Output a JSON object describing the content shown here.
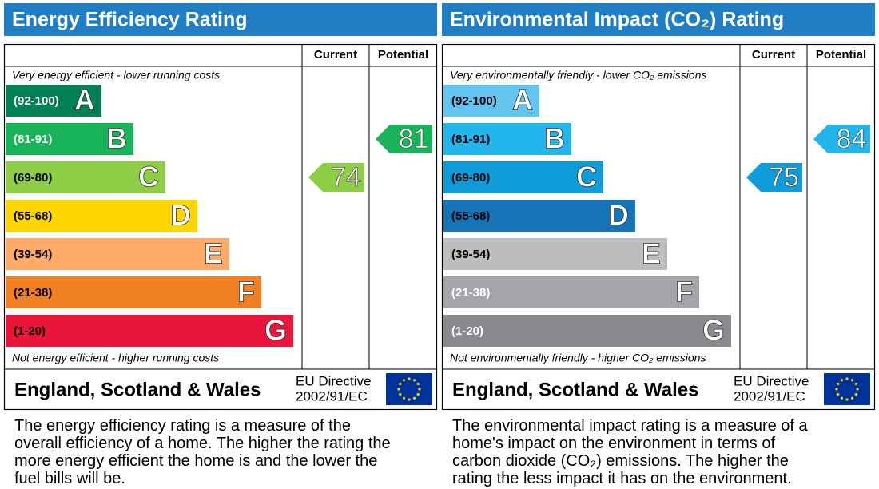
{
  "panels": [
    {
      "title": "Energy Efficiency Rating",
      "current_header": "Current",
      "potential_header": "Potential",
      "top_note": "Very energy efficient - lower running costs",
      "bottom_note": "Not energy efficient - higher running costs",
      "bands": [
        {
          "range": "(92-100)",
          "letter": "A",
          "color": "#008054",
          "text_color": "#ffffff"
        },
        {
          "range": "(81-91)",
          "letter": "B",
          "color": "#19b459",
          "text_color": "#ffffff"
        },
        {
          "range": "(69-80)",
          "letter": "C",
          "color": "#8dce46",
          "text_color": "#000000"
        },
        {
          "range": "(55-68)",
          "letter": "D",
          "color": "#ffd500",
          "text_color": "#000000"
        },
        {
          "range": "(39-54)",
          "letter": "E",
          "color": "#fcaa65",
          "text_color": "#000000"
        },
        {
          "range": "(21-38)",
          "letter": "F",
          "color": "#ef8023",
          "text_color": "#000000"
        },
        {
          "range": "(1-20)",
          "letter": "G",
          "color": "#e9153b",
          "text_color": "#000000"
        }
      ],
      "current": 74,
      "potential": 81,
      "region": "England, Scotland & Wales",
      "directive": "EU Directive",
      "directive_code": "2002/91/EC",
      "description": "The energy efficiency rating is a measure of the overall efficiency of a home. The higher the rating the more energy efficient the home is and the lower the fuel bills will be."
    },
    {
      "title": "Environmental Impact (CO₂) Rating",
      "current_header": "Current",
      "potential_header": "Potential",
      "top_note": "Very environmentally friendly - lower CO₂ emissions",
      "bottom_note": "Not environmentally friendly - higher CO₂ emissions",
      "bands": [
        {
          "range": "(92-100)",
          "letter": "A",
          "color": "#63c5ef",
          "text_color": "#000000"
        },
        {
          "range": "(81-91)",
          "letter": "B",
          "color": "#22b5eb",
          "text_color": "#000000"
        },
        {
          "range": "(69-80)",
          "letter": "C",
          "color": "#0e9bd8",
          "text_color": "#000000"
        },
        {
          "range": "(55-68)",
          "letter": "D",
          "color": "#1574b8",
          "text_color": "#000000"
        },
        {
          "range": "(39-54)",
          "letter": "E",
          "color": "#bbbdbf",
          "text_color": "#000000"
        },
        {
          "range": "(21-38)",
          "letter": "F",
          "color": "#a4a5a8",
          "text_color": "#ffffff"
        },
        {
          "range": "(1-20)",
          "letter": "G",
          "color": "#888a8d",
          "text_color": "#ffffff"
        }
      ],
      "current": 75,
      "potential": 84,
      "region": "England, Scotland & Wales",
      "directive": "EU Directive",
      "directive_code": "2002/91/EC",
      "description": "The environmental impact rating is a measure of a home's impact on the environment in terms of carbon dioxide (CO₂) emissions. The higher the rating the less impact it has on the environment."
    }
  ]
}
